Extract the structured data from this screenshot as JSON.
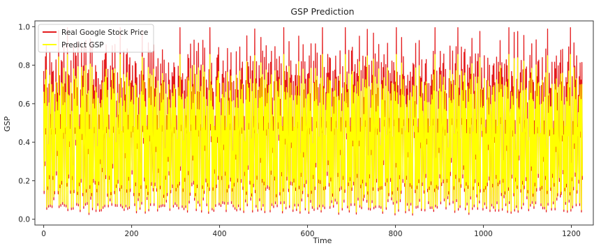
{
  "chart_data": {
    "type": "line",
    "title": "GSP Prediction",
    "xlabel": "Time",
    "ylabel": "GSP",
    "xlim": [
      -20,
      1250
    ],
    "ylim": [
      -0.03,
      1.03
    ],
    "xticks": [
      0,
      200,
      400,
      600,
      800,
      1000,
      1200
    ],
    "xtick_labels": [
      "0",
      "200",
      "400",
      "600",
      "800",
      "1000",
      "1200"
    ],
    "yticks": [
      0.0,
      0.2,
      0.4,
      0.6,
      0.8,
      1.0
    ],
    "ytick_labels": [
      "0.0",
      "0.2",
      "0.4",
      "0.6",
      "0.8",
      "1.0"
    ],
    "grid": false,
    "legend": "upper-left",
    "num_points": 1226,
    "series": [
      {
        "name": "Real Google Stock Price",
        "color": "#e41a1c",
        "values": [
          0.74,
          0.12,
          0.69,
          0.03,
          0.78,
          0.21,
          0.86,
          0.05,
          0.69,
          0.15,
          0.82,
          0.04,
          0.78,
          0.18,
          0.89,
          0.06,
          0.72,
          0.11,
          0.8,
          0.03,
          0.7,
          0.19,
          0.75,
          0.08,
          0.84,
          0.12,
          0.68,
          0.04,
          0.86,
          0.22,
          0.75,
          0.02,
          0.71,
          0.13,
          0.95,
          0.05,
          0.74,
          0.15,
          0.68,
          0.03,
          0.79,
          0.18,
          0.82,
          0.07,
          0.69,
          0.12,
          0.99,
          0.04,
          0.72,
          0.16,
          0.8,
          0.05,
          0.71,
          0.14,
          0.94,
          0.03,
          0.73,
          0.19,
          0.69,
          0.06,
          0.81,
          0.11,
          0.85,
          0.04,
          0.7,
          0.17,
          0.76,
          0.05,
          0.88,
          0.13,
          0.72,
          0.02,
          0.79,
          0.2,
          0.82,
          0.07,
          0.68,
          0.12,
          0.93,
          0.04,
          0.74,
          0.15,
          0.8,
          0.03,
          0.71,
          0.18,
          0.89,
          0.06,
          0.69,
          0.11,
          0.77,
          0.03,
          0.84,
          0.16,
          0.72,
          0.05,
          0.95,
          0.13,
          0.7,
          0.04,
          0.8,
          0.19,
          0.75,
          0.02,
          0.69,
          0.14,
          0.86,
          0.07,
          0.73,
          0.12,
          0.91,
          0.04,
          0.71,
          0.16,
          0.8,
          0.05,
          0.68,
          0.17,
          0.84,
          0.03,
          0.73,
          0.11,
          0.96,
          0.06,
          0.7,
          0.15,
          0.78,
          0.04
        ]
      },
      {
        "name": "Predict GSP",
        "color": "#ffff00"
      }
    ]
  }
}
